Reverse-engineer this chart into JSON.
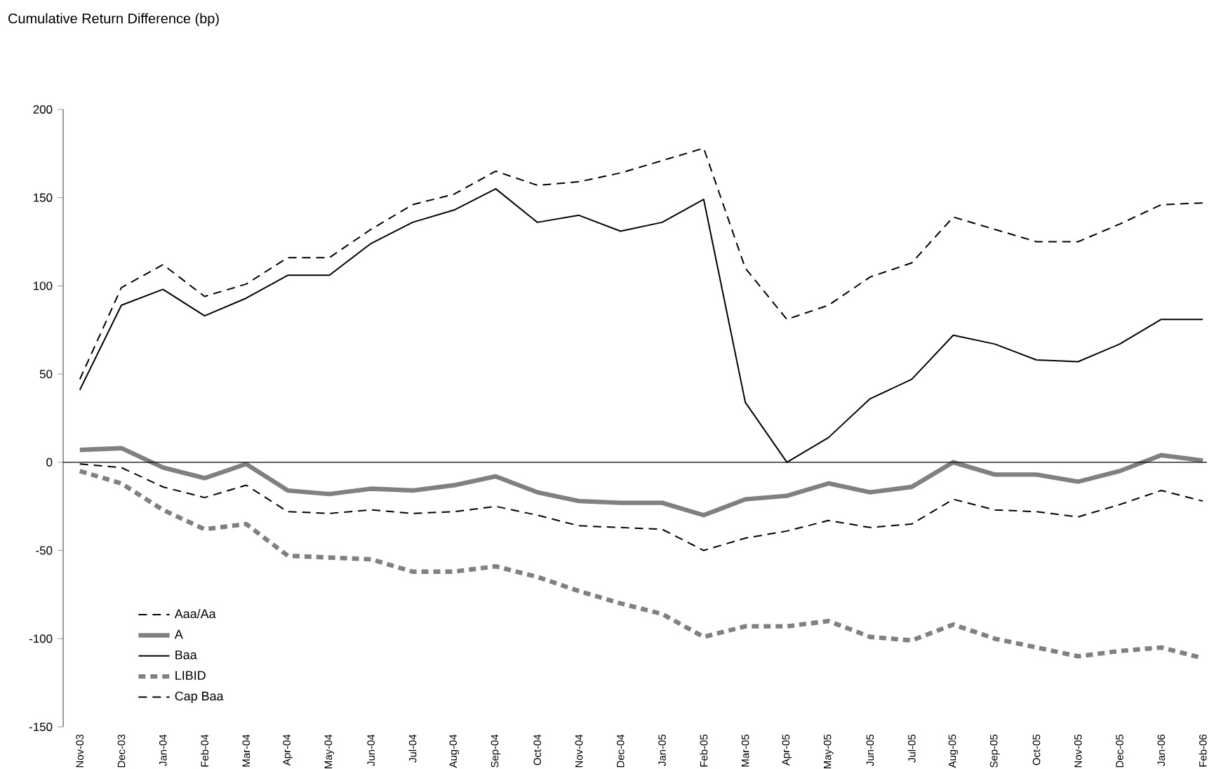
{
  "chart_data": {
    "type": "line",
    "title": "Cumulative Return Difference (bp)",
    "categories": [
      "Nov-03",
      "Dec-03",
      "Jan-04",
      "Feb-04",
      "Mar-04",
      "Apr-04",
      "May-04",
      "Jun-04",
      "Jul-04",
      "Aug-04",
      "Sep-04",
      "Oct-04",
      "Nov-04",
      "Dec-04",
      "Jan-05",
      "Feb-05",
      "Mar-05",
      "Apr-05",
      "May-05",
      "Jun-05",
      "Jul-05",
      "Aug-05",
      "Sep-05",
      "Oct-05",
      "Nov-05",
      "Dec-05",
      "Jan-06",
      "Feb-06"
    ],
    "series": [
      {
        "name": "Aaa/Aa",
        "color": "#000000",
        "line_style": "dashed",
        "values": [
          -1,
          -3,
          -14,
          -20,
          -13,
          -28,
          -29,
          -27,
          -29,
          -28,
          -25,
          -30,
          -36,
          -37,
          -38,
          -50,
          -43,
          -39,
          -33,
          -37,
          -35,
          -21,
          -27,
          -28,
          -31,
          -24,
          -16,
          -22
        ]
      },
      {
        "name": "A",
        "color": "#808080",
        "line_style": "solid",
        "values": [
          7,
          8,
          -3,
          -9,
          -1,
          -16,
          -18,
          -15,
          -16,
          -13,
          -8,
          -17,
          -22,
          -23,
          -23,
          -30,
          -21,
          -19,
          -12,
          -17,
          -14,
          0,
          -7,
          -7,
          -11,
          -5,
          4,
          1
        ]
      },
      {
        "name": "Baa",
        "color": "#000000",
        "line_style": "solid",
        "values": [
          41,
          89,
          98,
          83,
          93,
          106,
          106,
          124,
          136,
          143,
          155,
          136,
          140,
          131,
          136,
          149,
          34,
          0,
          14,
          36,
          47,
          72,
          67,
          58,
          57,
          67,
          81,
          81
        ]
      },
      {
        "name": "LIBID",
        "color": "#808080",
        "line_style": "dotted",
        "values": [
          -5,
          -12,
          -27,
          -38,
          -35,
          -53,
          -54,
          -55,
          -62,
          -62,
          -59,
          -65,
          -73,
          -80,
          -86,
          -99,
          -93,
          -93,
          -90,
          -99,
          -101,
          -92,
          -100,
          -105,
          -110,
          -107,
          -105,
          -111
        ]
      },
      {
        "name": "Cap Baa",
        "color": "#000000",
        "line_style": "dashed",
        "values": [
          47,
          99,
          112,
          94,
          101,
          116,
          116,
          132,
          146,
          152,
          165,
          157,
          159,
          164,
          171,
          178,
          110,
          81,
          89,
          105,
          113,
          139,
          132,
          125,
          125,
          135,
          146,
          147
        ]
      }
    ],
    "ylim": [
      -150,
      200
    ],
    "yticks": [
      -150,
      -100,
      -50,
      0,
      50,
      100,
      150,
      200
    ],
    "ref_lines": [
      {
        "axis": "y",
        "value": 0,
        "color": "#000000"
      }
    ],
    "grid": false,
    "legend": "bottom left",
    "marker": "none"
  }
}
